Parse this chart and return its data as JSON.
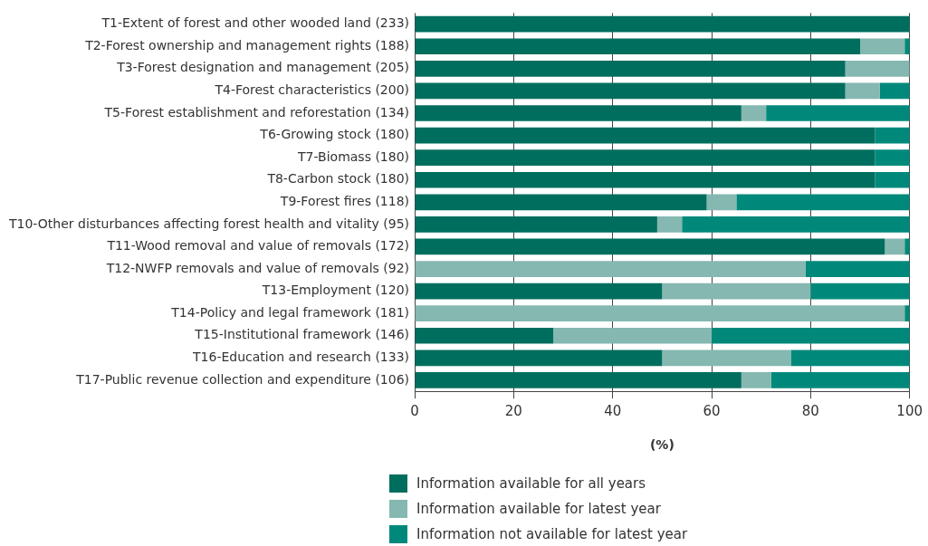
{
  "chart_data": {
    "type": "bar",
    "orientation": "horizontal",
    "stacked": true,
    "xlabel": "(%)",
    "categories": [
      "T1-Extent of forest and other wooded land (233)",
      "T2-Forest ownership and management rights (188)",
      "T3-Forest designation and management (205)",
      "T4-Forest characteristics (200)",
      "T5-Forest establishment and reforestation (134)",
      "T6-Growing stock (180)",
      "T7-Biomass (180)",
      "T8-Carbon stock (180)",
      "T9-Forest fires (118)",
      "T10-Other disturbances affecting forest health and vitality (95)",
      "T11-Wood removal and value of removals (172)",
      "T12-NWFP removals and value of removals (92)",
      "T13-Employment (120)",
      "T14-Policy and legal framework (181)",
      "T15-Institutional framework (146)",
      "T16-Education and research (133)",
      "T17-Public revenue collection and expenditure (106)"
    ],
    "series": [
      {
        "name": "Information available for all years",
        "color": "#006e5e",
        "values": [
          100,
          90,
          87,
          87,
          66,
          93,
          93,
          93,
          59,
          49,
          95,
          0,
          50,
          0,
          28,
          50,
          66
        ]
      },
      {
        "name": "Information available for latest year",
        "color": "#84b8b0",
        "values": [
          0,
          9,
          13,
          7,
          5,
          0,
          0,
          0,
          6,
          5,
          4,
          79,
          30,
          99,
          32,
          26,
          6
        ]
      },
      {
        "name": "Information not available for latest year",
        "color": "#00897b",
        "values": [
          0,
          1,
          0,
          6,
          29,
          7,
          7,
          7,
          35,
          46,
          1,
          21,
          20,
          1,
          40,
          24,
          28
        ]
      }
    ],
    "xlim": [
      0,
      100
    ],
    "xticks": [
      0,
      20,
      40,
      60,
      80,
      100
    ],
    "grid": "x",
    "legend": "bottom"
  }
}
